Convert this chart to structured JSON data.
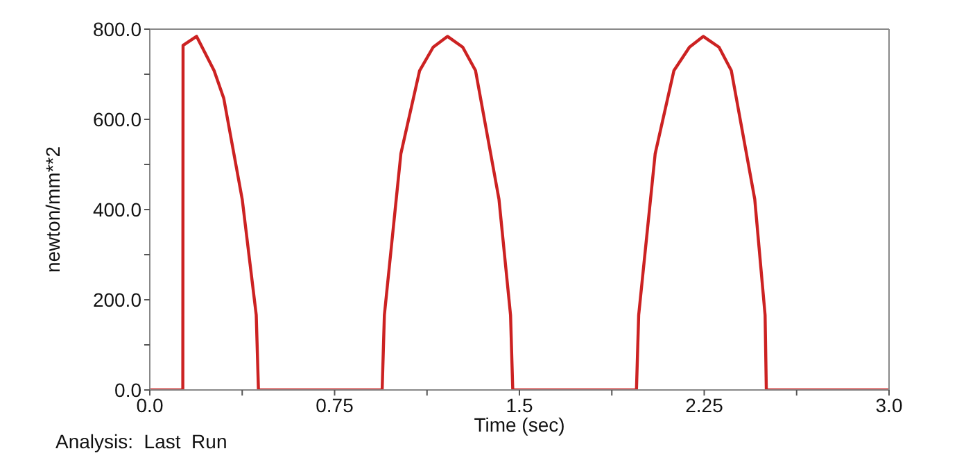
{
  "chart_data": {
    "type": "line",
    "xlabel": "Time (sec)",
    "ylabel": "newton/mm**2",
    "annotations": [
      "Analysis:  Last  Run"
    ],
    "x": [
      0,
      0.134,
      0.135,
      0.19,
      0.261,
      0.3,
      0.375,
      0.432,
      0.441,
      0.943,
      0.952,
      1.019,
      1.095,
      1.15,
      1.208,
      1.27,
      1.322,
      1.417,
      1.464,
      1.473,
      1.975,
      1.984,
      2.051,
      2.127,
      2.19,
      2.246,
      2.31,
      2.36,
      2.455,
      2.497,
      2.502,
      3.0
    ],
    "series": [
      {
        "color": "#cc2222",
        "values": [
          0,
          0,
          764,
          784,
          708,
          647,
          423,
          166,
          0,
          0,
          166,
          524,
          708,
          760,
          784,
          760,
          708,
          423,
          166,
          0,
          0,
          166,
          524,
          708,
          760,
          784,
          760,
          708,
          423,
          166,
          0,
          0
        ]
      }
    ],
    "xlim": [
      0,
      3.0
    ],
    "xticks": [
      {
        "value": 0,
        "label": "0.0"
      },
      {
        "value": 0.375,
        "label": null
      },
      0.75,
      {
        "value": 1.125,
        "label": null
      },
      1.5,
      {
        "value": 1.875,
        "label": null
      },
      2.25,
      {
        "value": 2.625,
        "label": null
      },
      {
        "value": 3,
        "label": "3.0"
      }
    ],
    "ylim": [
      0,
      800
    ],
    "yticks": [
      {
        "value": 0,
        "label": "0.0"
      },
      {
        "value": 100,
        "label": null
      },
      {
        "value": 200,
        "label": "200.0"
      },
      {
        "value": 300,
        "label": null
      },
      {
        "value": 400,
        "label": "400.0"
      },
      {
        "value": 500,
        "label": null
      },
      {
        "value": 600,
        "label": "600.0"
      },
      {
        "value": 700,
        "label": null
      },
      {
        "value": 800,
        "label": "800.0"
      }
    ],
    "grid": false,
    "legend": false,
    "marker": "none",
    "line_style": "solid"
  }
}
